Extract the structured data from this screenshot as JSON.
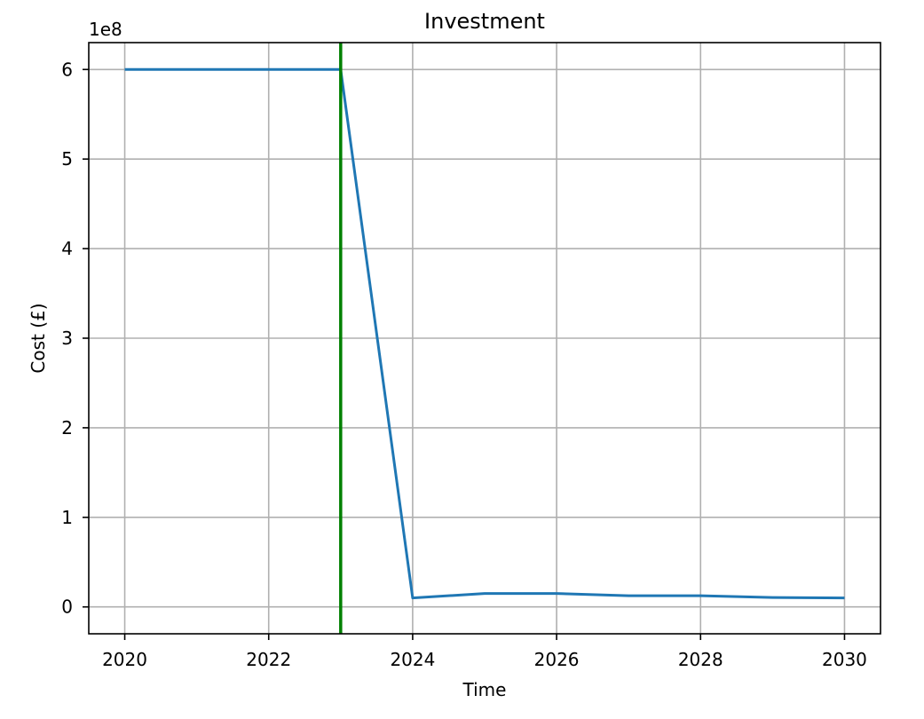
{
  "chart_data": {
    "type": "line",
    "title": "Investment",
    "xlabel": "Time",
    "ylabel": "Cost (£)",
    "offset_label": "1e8",
    "xlim": [
      2019.5,
      2030.5
    ],
    "ylim": [
      -0.3,
      6.3
    ],
    "x_ticks": [
      2020,
      2022,
      2024,
      2026,
      2028,
      2030
    ],
    "y_ticks": [
      0,
      1,
      2,
      3,
      4,
      5,
      6
    ],
    "grid": true,
    "series": [
      {
        "color": "#1f77b4",
        "x": [
          2020,
          2021,
          2022,
          2023,
          2024,
          2025,
          2026,
          2027,
          2028,
          2029,
          2030
        ],
        "y": [
          6.0,
          6.0,
          6.0,
          6.0,
          0.1,
          0.15,
          0.15,
          0.125,
          0.125,
          0.105,
          0.1
        ]
      }
    ],
    "vlines": [
      {
        "x": 2023,
        "color": "#008000"
      }
    ]
  }
}
